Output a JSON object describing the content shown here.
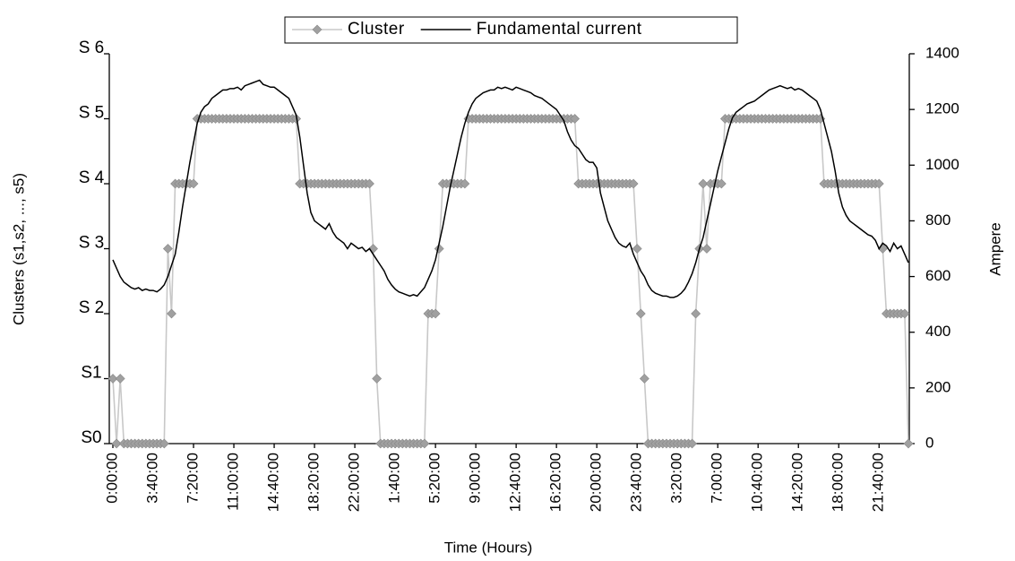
{
  "chart_data": {
    "type": "line",
    "x_label": "Time (Hours)",
    "y_label": "Clusters (s1,s2, ..., s5)",
    "y2_label": "Ampere",
    "legend": "top",
    "grid": false,
    "ylim": [
      0,
      6
    ],
    "yticks": [
      {
        "value": 0,
        "label": "S0"
      },
      {
        "value": 1,
        "label": "S1"
      },
      {
        "value": 2,
        "label": "S 2"
      },
      {
        "value": 3,
        "label": "S 3"
      },
      {
        "value": 4,
        "label": "S 4"
      },
      {
        "value": 5,
        "label": "S 5"
      },
      {
        "value": 6,
        "label": "S 6"
      }
    ],
    "y2lim": [
      0,
      1400
    ],
    "y2ticks": [
      0,
      200,
      400,
      600,
      800,
      1000,
      1200,
      1400
    ],
    "categories": [
      "0:00:00",
      null,
      null,
      null,
      null,
      null,
      null,
      null,
      null,
      null,
      null,
      "3:40:00",
      null,
      null,
      null,
      null,
      null,
      null,
      null,
      null,
      null,
      null,
      "7:20:00",
      null,
      null,
      null,
      null,
      null,
      null,
      null,
      null,
      null,
      null,
      "11:00:00",
      null,
      null,
      null,
      null,
      null,
      null,
      null,
      null,
      null,
      null,
      "14:40:00",
      null,
      null,
      null,
      null,
      null,
      null,
      null,
      null,
      null,
      null,
      "18:20:00",
      null,
      null,
      null,
      null,
      null,
      null,
      null,
      null,
      null,
      null,
      "22:00:00",
      null,
      null,
      null,
      null,
      null,
      null,
      null,
      null,
      null,
      null,
      "1:40:00",
      null,
      null,
      null,
      null,
      null,
      null,
      null,
      null,
      null,
      null,
      "5:20:00",
      null,
      null,
      null,
      null,
      null,
      null,
      null,
      null,
      null,
      null,
      "9:00:00",
      null,
      null,
      null,
      null,
      null,
      null,
      null,
      null,
      null,
      null,
      "12:40:00",
      null,
      null,
      null,
      null,
      null,
      null,
      null,
      null,
      null,
      null,
      "16:20:00",
      null,
      null,
      null,
      null,
      null,
      null,
      null,
      null,
      null,
      null,
      "20:00:00",
      null,
      null,
      null,
      null,
      null,
      null,
      null,
      null,
      null,
      null,
      "23:40:00",
      null,
      null,
      null,
      null,
      null,
      null,
      null,
      null,
      null,
      null,
      "3:20:00",
      null,
      null,
      null,
      null,
      null,
      null,
      null,
      null,
      null,
      null,
      "7:00:00",
      null,
      null,
      null,
      null,
      null,
      null,
      null,
      null,
      null,
      null,
      "10:40:00",
      null,
      null,
      null,
      null,
      null,
      null,
      null,
      null,
      null,
      null,
      "14:20:00",
      null,
      null,
      null,
      null,
      null,
      null,
      null,
      null,
      null,
      null,
      "18:00:00",
      null,
      null,
      null,
      null,
      null,
      null,
      null,
      null,
      null,
      null,
      "21:40:00",
      null,
      null,
      null,
      null,
      null,
      null,
      null,
      null
    ],
    "series": [
      {
        "name": "Cluster",
        "color": "#a0a0a0",
        "axis": "y",
        "values": [
          1,
          0,
          1,
          0,
          0,
          0,
          0,
          0,
          0,
          0,
          0,
          0,
          0,
          0,
          0,
          3,
          2,
          4,
          4,
          4,
          4,
          4,
          4,
          5,
          5,
          5,
          5,
          5,
          5,
          5,
          5,
          5,
          5,
          5,
          5,
          5,
          5,
          5,
          5,
          5,
          5,
          5,
          5,
          5,
          5,
          5,
          5,
          5,
          5,
          5,
          5,
          4,
          4,
          4,
          4,
          4,
          4,
          4,
          4,
          4,
          4,
          4,
          4,
          4,
          4,
          4,
          4,
          4,
          4,
          4,
          4,
          3,
          1,
          0,
          0,
          0,
          0,
          0,
          0,
          0,
          0,
          0,
          0,
          0,
          0,
          0,
          2,
          2,
          2,
          3,
          4,
          4,
          4,
          4,
          4,
          4,
          4,
          5,
          5,
          5,
          5,
          5,
          5,
          5,
          5,
          5,
          5,
          5,
          5,
          5,
          5,
          5,
          5,
          5,
          5,
          5,
          5,
          5,
          5,
          5,
          5,
          5,
          5,
          5,
          5,
          5,
          5,
          4,
          4,
          4,
          4,
          4,
          4,
          4,
          4,
          4,
          4,
          4,
          4,
          4,
          4,
          4,
          4,
          3,
          2,
          1,
          0,
          0,
          0,
          0,
          0,
          0,
          0,
          0,
          0,
          0,
          0,
          0,
          0,
          2,
          3,
          4,
          3,
          4,
          4,
          4,
          4,
          5,
          5,
          5,
          5,
          5,
          5,
          5,
          5,
          5,
          5,
          5,
          5,
          5,
          5,
          5,
          5,
          5,
          5,
          5,
          5,
          5,
          5,
          5,
          5,
          5,
          5,
          5,
          4,
          4,
          4,
          4,
          4,
          4,
          4,
          4,
          4,
          4,
          4,
          4,
          4,
          4,
          4,
          4,
          3,
          2,
          2,
          2,
          2,
          2,
          2,
          0
        ]
      },
      {
        "name": "Fundamental current",
        "color": "#000000",
        "axis": "y2",
        "values": [
          660,
          630,
          600,
          580,
          570,
          560,
          555,
          560,
          550,
          555,
          550,
          550,
          545,
          555,
          570,
          600,
          640,
          680,
          760,
          850,
          930,
          1010,
          1080,
          1150,
          1190,
          1210,
          1220,
          1240,
          1250,
          1260,
          1270,
          1270,
          1275,
          1275,
          1280,
          1270,
          1285,
          1290,
          1295,
          1300,
          1305,
          1290,
          1285,
          1280,
          1280,
          1270,
          1260,
          1250,
          1240,
          1210,
          1180,
          1100,
          1000,
          900,
          830,
          800,
          790,
          780,
          770,
          790,
          760,
          740,
          730,
          720,
          700,
          720,
          710,
          700,
          705,
          690,
          700,
          680,
          660,
          640,
          620,
          590,
          570,
          555,
          545,
          540,
          535,
          530,
          535,
          530,
          545,
          560,
          590,
          620,
          660,
          720,
          780,
          850,
          920,
          980,
          1040,
          1100,
          1150,
          1190,
          1220,
          1240,
          1250,
          1260,
          1265,
          1270,
          1270,
          1280,
          1275,
          1280,
          1275,
          1270,
          1280,
          1275,
          1270,
          1265,
          1260,
          1250,
          1245,
          1240,
          1230,
          1220,
          1210,
          1200,
          1180,
          1160,
          1120,
          1090,
          1070,
          1060,
          1040,
          1020,
          1010,
          1010,
          990,
          900,
          850,
          800,
          770,
          740,
          720,
          710,
          705,
          720,
          680,
          650,
          620,
          600,
          570,
          550,
          540,
          535,
          530,
          530,
          525,
          525,
          530,
          540,
          555,
          580,
          610,
          650,
          700,
          740,
          800,
          860,
          920,
          980,
          1030,
          1080,
          1130,
          1170,
          1190,
          1200,
          1210,
          1220,
          1225,
          1230,
          1240,
          1250,
          1260,
          1270,
          1275,
          1280,
          1285,
          1280,
          1275,
          1280,
          1270,
          1275,
          1270,
          1260,
          1250,
          1240,
          1230,
          1200,
          1150,
          1100,
          1050,
          980,
          900,
          850,
          820,
          800,
          790,
          780,
          770,
          760,
          750,
          745,
          730,
          700,
          720,
          710,
          690,
          720,
          700,
          710,
          680,
          650
        ]
      }
    ]
  }
}
